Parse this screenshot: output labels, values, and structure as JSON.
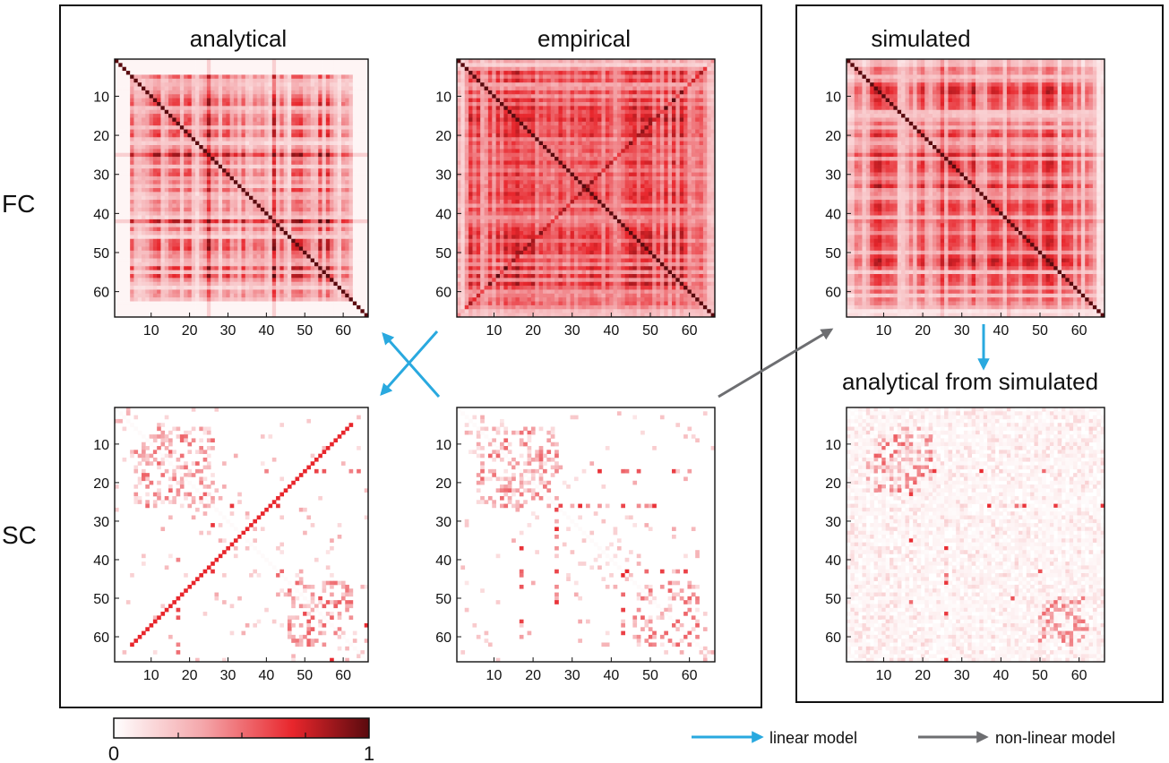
{
  "chart_data": [
    {
      "type": "heatmap",
      "id": "fc-analytical",
      "row": "FC",
      "title": "analytical",
      "n": 66,
      "ticks": [
        10,
        20,
        30,
        40,
        50,
        60
      ],
      "pattern": "block",
      "diagonal": 1.0,
      "edge_fade": 4,
      "description_values": {
        "diagonal": 1.0,
        "typical_offdiag": [
          0.05,
          0.6
        ]
      }
    },
    {
      "type": "heatmap",
      "id": "fc-empirical",
      "row": "FC",
      "title": "empirical",
      "n": 66,
      "ticks": [
        10,
        20,
        30,
        40,
        50,
        60
      ],
      "pattern": "dense-cross",
      "diagonal": 1.0,
      "description_values": {
        "diagonal": 1.0,
        "typical_offdiag": [
          0.3,
          0.8
        ]
      }
    },
    {
      "type": "heatmap",
      "id": "fc-simulated",
      "row": "FC",
      "title": "simulated",
      "n": 66,
      "ticks": [
        10,
        20,
        30,
        40,
        50,
        60
      ],
      "pattern": "block-dense",
      "diagonal": 1.0,
      "description_values": {
        "diagonal": 1.0,
        "typical_offdiag": [
          0.15,
          0.65
        ]
      }
    },
    {
      "type": "heatmap",
      "id": "sc-analytical",
      "row": "SC",
      "title": "",
      "n": 66,
      "ticks": [
        10,
        20,
        30,
        40,
        50,
        60
      ],
      "pattern": "sparse-antidiag",
      "description_values": {
        "antidiagonal": 0.7,
        "typical_offdiag": [
          0.0,
          0.3
        ]
      }
    },
    {
      "type": "heatmap",
      "id": "sc-empirical",
      "row": "SC",
      "title": "",
      "n": 66,
      "ticks": [
        10,
        20,
        30,
        40,
        50,
        60
      ],
      "pattern": "sparse",
      "description_values": {
        "typical_offdiag": [
          0.0,
          0.7
        ]
      }
    },
    {
      "type": "heatmap",
      "id": "sc-analytical-from-simulated",
      "row": "SC",
      "title": "analytical from simulated",
      "n": 66,
      "ticks": [
        10,
        20,
        30,
        40,
        50,
        60
      ],
      "pattern": "noisy-sparse",
      "description_values": {
        "typical_offdiag": [
          0.0,
          0.6
        ]
      }
    }
  ],
  "row_labels": {
    "fc": "FC",
    "sc": "SC"
  },
  "colorbar": {
    "min_label": "0",
    "max_label": "1",
    "colors": [
      "#ffffff",
      "#f4a6aa",
      "#e8262c",
      "#5a0a0e"
    ]
  },
  "legend": {
    "linear": {
      "label": "linear model",
      "color": "#29a9df"
    },
    "nonlinear": {
      "label": "non-linear model",
      "color": "#6d6e71"
    }
  }
}
